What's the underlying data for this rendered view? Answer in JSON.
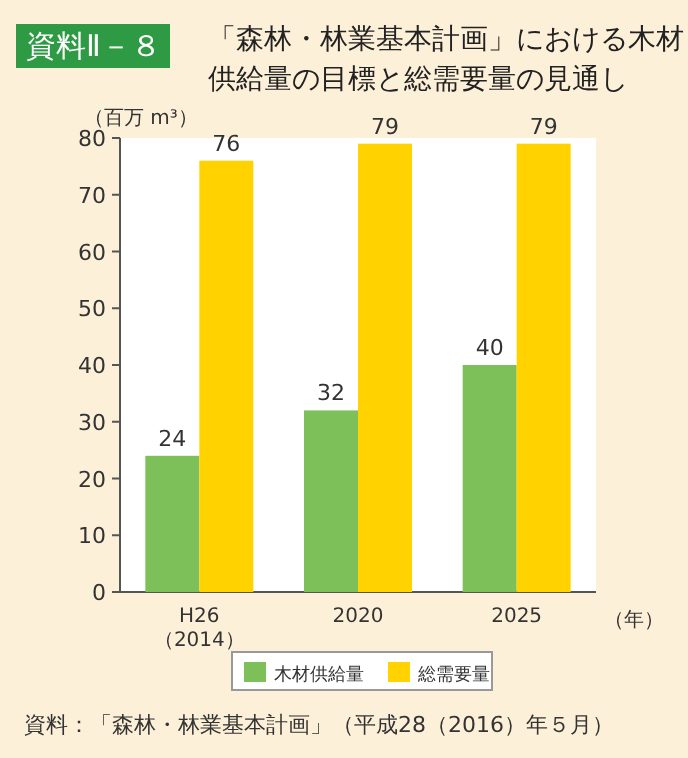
{
  "chart_data": {
    "type": "bar",
    "title": "「森林・林業基本計画」における木材供給量の目標と総需要量の見通し",
    "annotations": [
      "資料Ⅱ－８",
      "資料：「森林・林業基本計画」（平成28（2016）年５月）"
    ],
    "ylabel": "（百万 m³）",
    "xlabel": "（年）",
    "categories": [
      "H26\n（2014）",
      "2020",
      "2025"
    ],
    "series": [
      {
        "name": "木材供給量",
        "color": "#7dc05a",
        "values": [
          24,
          32,
          40
        ]
      },
      {
        "name": "総需要量",
        "color": "#ffd200",
        "values": [
          76,
          79,
          79
        ]
      }
    ],
    "ylim": [
      0,
      80
    ],
    "yticks": [
      0,
      10,
      20,
      30,
      40,
      50,
      60,
      70,
      80
    ],
    "data_labels": true,
    "legend": "bottom",
    "grid": false
  }
}
